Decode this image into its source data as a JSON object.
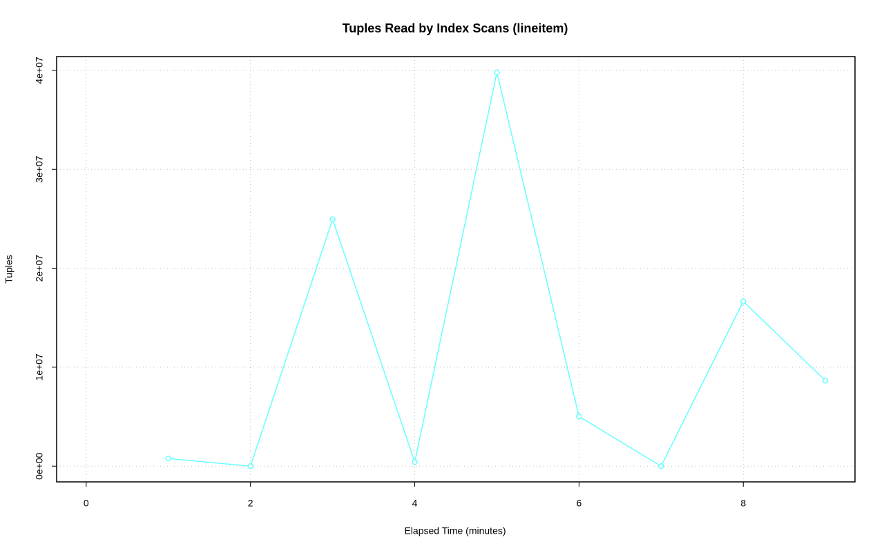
{
  "chart_data": {
    "type": "line",
    "title": "Tuples Read by Index Scans (lineitem)",
    "x_label": "Elapsed Time (minutes)",
    "y_label": "Tuples",
    "x": [
      1,
      2,
      3,
      4,
      5,
      6,
      7,
      8,
      9
    ],
    "series": [
      {
        "name": "Tuples",
        "color": "#66ffff",
        "values": [
          770000,
          0,
          24950000,
          420000,
          39800000,
          5020000,
          0,
          16650000,
          8640000
        ]
      }
    ],
    "xlim": [
      -0.36,
      9.36
    ],
    "xticks": [
      0,
      2,
      4,
      6,
      8
    ],
    "ylim": [
      -1590000,
      41390000
    ],
    "yticks": [
      {
        "value": 0,
        "label": "0e+00"
      },
      {
        "value": 10000000,
        "label": "1e+07"
      },
      {
        "value": 20000000,
        "label": "2e+07"
      },
      {
        "value": 30000000,
        "label": "3e+07"
      },
      {
        "value": 40000000,
        "label": "4e+07"
      }
    ],
    "grid": true
  }
}
